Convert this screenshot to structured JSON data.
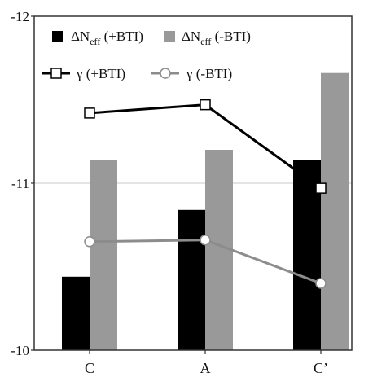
{
  "chart_data": {
    "type": "bar",
    "categories": [
      "C",
      "A",
      "C’"
    ],
    "y_ticks": [
      "-12",
      "-11",
      "-10"
    ],
    "ylim": [
      -12,
      -10
    ],
    "grid": {
      "horizontal_at": [
        -11
      ]
    },
    "legend_placement": "top-left",
    "series": [
      {
        "name": "ΔN_eff (+BTI)",
        "legend_main": "ΔN",
        "legend_sub": "eff",
        "legend_tail": " (+BTI)",
        "kind": "bar",
        "values": [
          -10.44,
          -10.84,
          -11.14
        ]
      },
      {
        "name": "ΔN_eff (-BTI)",
        "legend_main": "ΔN",
        "legend_sub": "eff",
        "legend_tail": " (-BTI)",
        "kind": "bar",
        "values": [
          -11.14,
          -11.2,
          -11.66
        ]
      },
      {
        "name": "γ (+BTI)",
        "kind": "line",
        "marker": "square",
        "values": [
          -11.42,
          -11.47,
          -10.97
        ]
      },
      {
        "name": "γ (-BTI)",
        "kind": "line",
        "marker": "circle",
        "values": [
          -10.65,
          -10.66,
          -10.4
        ]
      }
    ],
    "colors": {
      "bar_plus": "#000000",
      "bar_minus": "#999999",
      "line_plus": "#000000",
      "line_minus": "#8c8c8c",
      "gridline": "#c8c8c8",
      "frame": "#333333"
    }
  }
}
